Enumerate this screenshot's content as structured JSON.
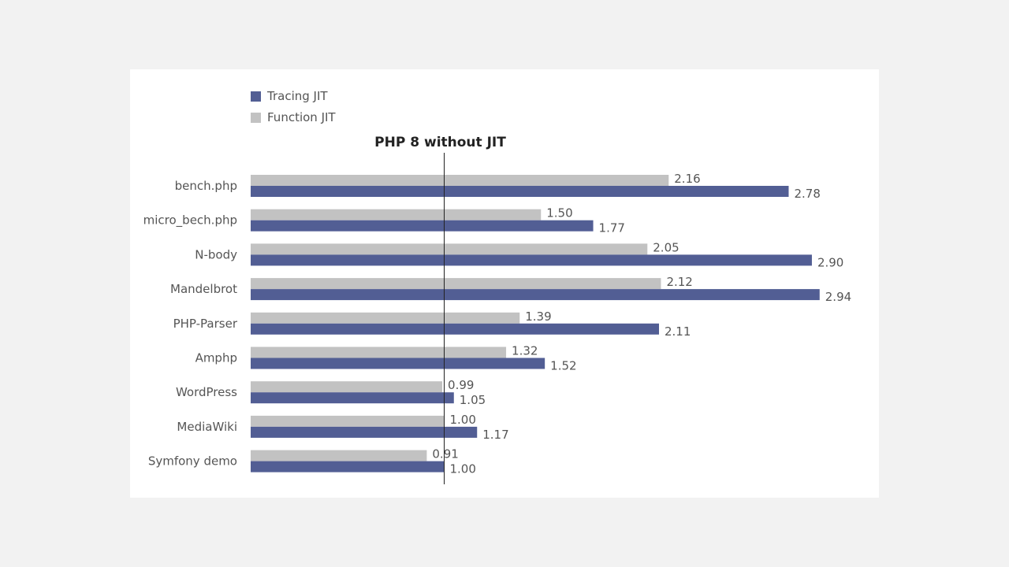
{
  "chart_data": {
    "type": "bar",
    "orientation": "horizontal",
    "categories": [
      "bench.php",
      "micro_bech.php",
      "N-body",
      "Mandelbrot",
      "PHP-Parser",
      "Amphp",
      "WordPress",
      "MediaWiki",
      "Symfony demo"
    ],
    "series": [
      {
        "name": "Function JIT",
        "color": "#c2c2c2",
        "values": [
          2.16,
          1.5,
          2.05,
          2.12,
          1.39,
          1.32,
          0.99,
          1.0,
          0.91
        ]
      },
      {
        "name": "Tracing JIT",
        "color": "#525e94",
        "values": [
          2.78,
          1.77,
          2.9,
          2.94,
          2.11,
          1.52,
          1.05,
          1.17,
          1.0
        ]
      }
    ],
    "legend": {
      "position": "top-left",
      "order": [
        "Tracing JIT",
        "Function JIT"
      ]
    },
    "reference_line": {
      "value": 1.0,
      "label": "PHP 8 without JIT"
    },
    "xlim": [
      0,
      2.94
    ],
    "grid": false,
    "xlabel": "",
    "ylabel": ""
  },
  "colors": {
    "background": "#f2f2f2",
    "card": "#ffffff",
    "text": "#555555",
    "reference_line": "#222222"
  }
}
